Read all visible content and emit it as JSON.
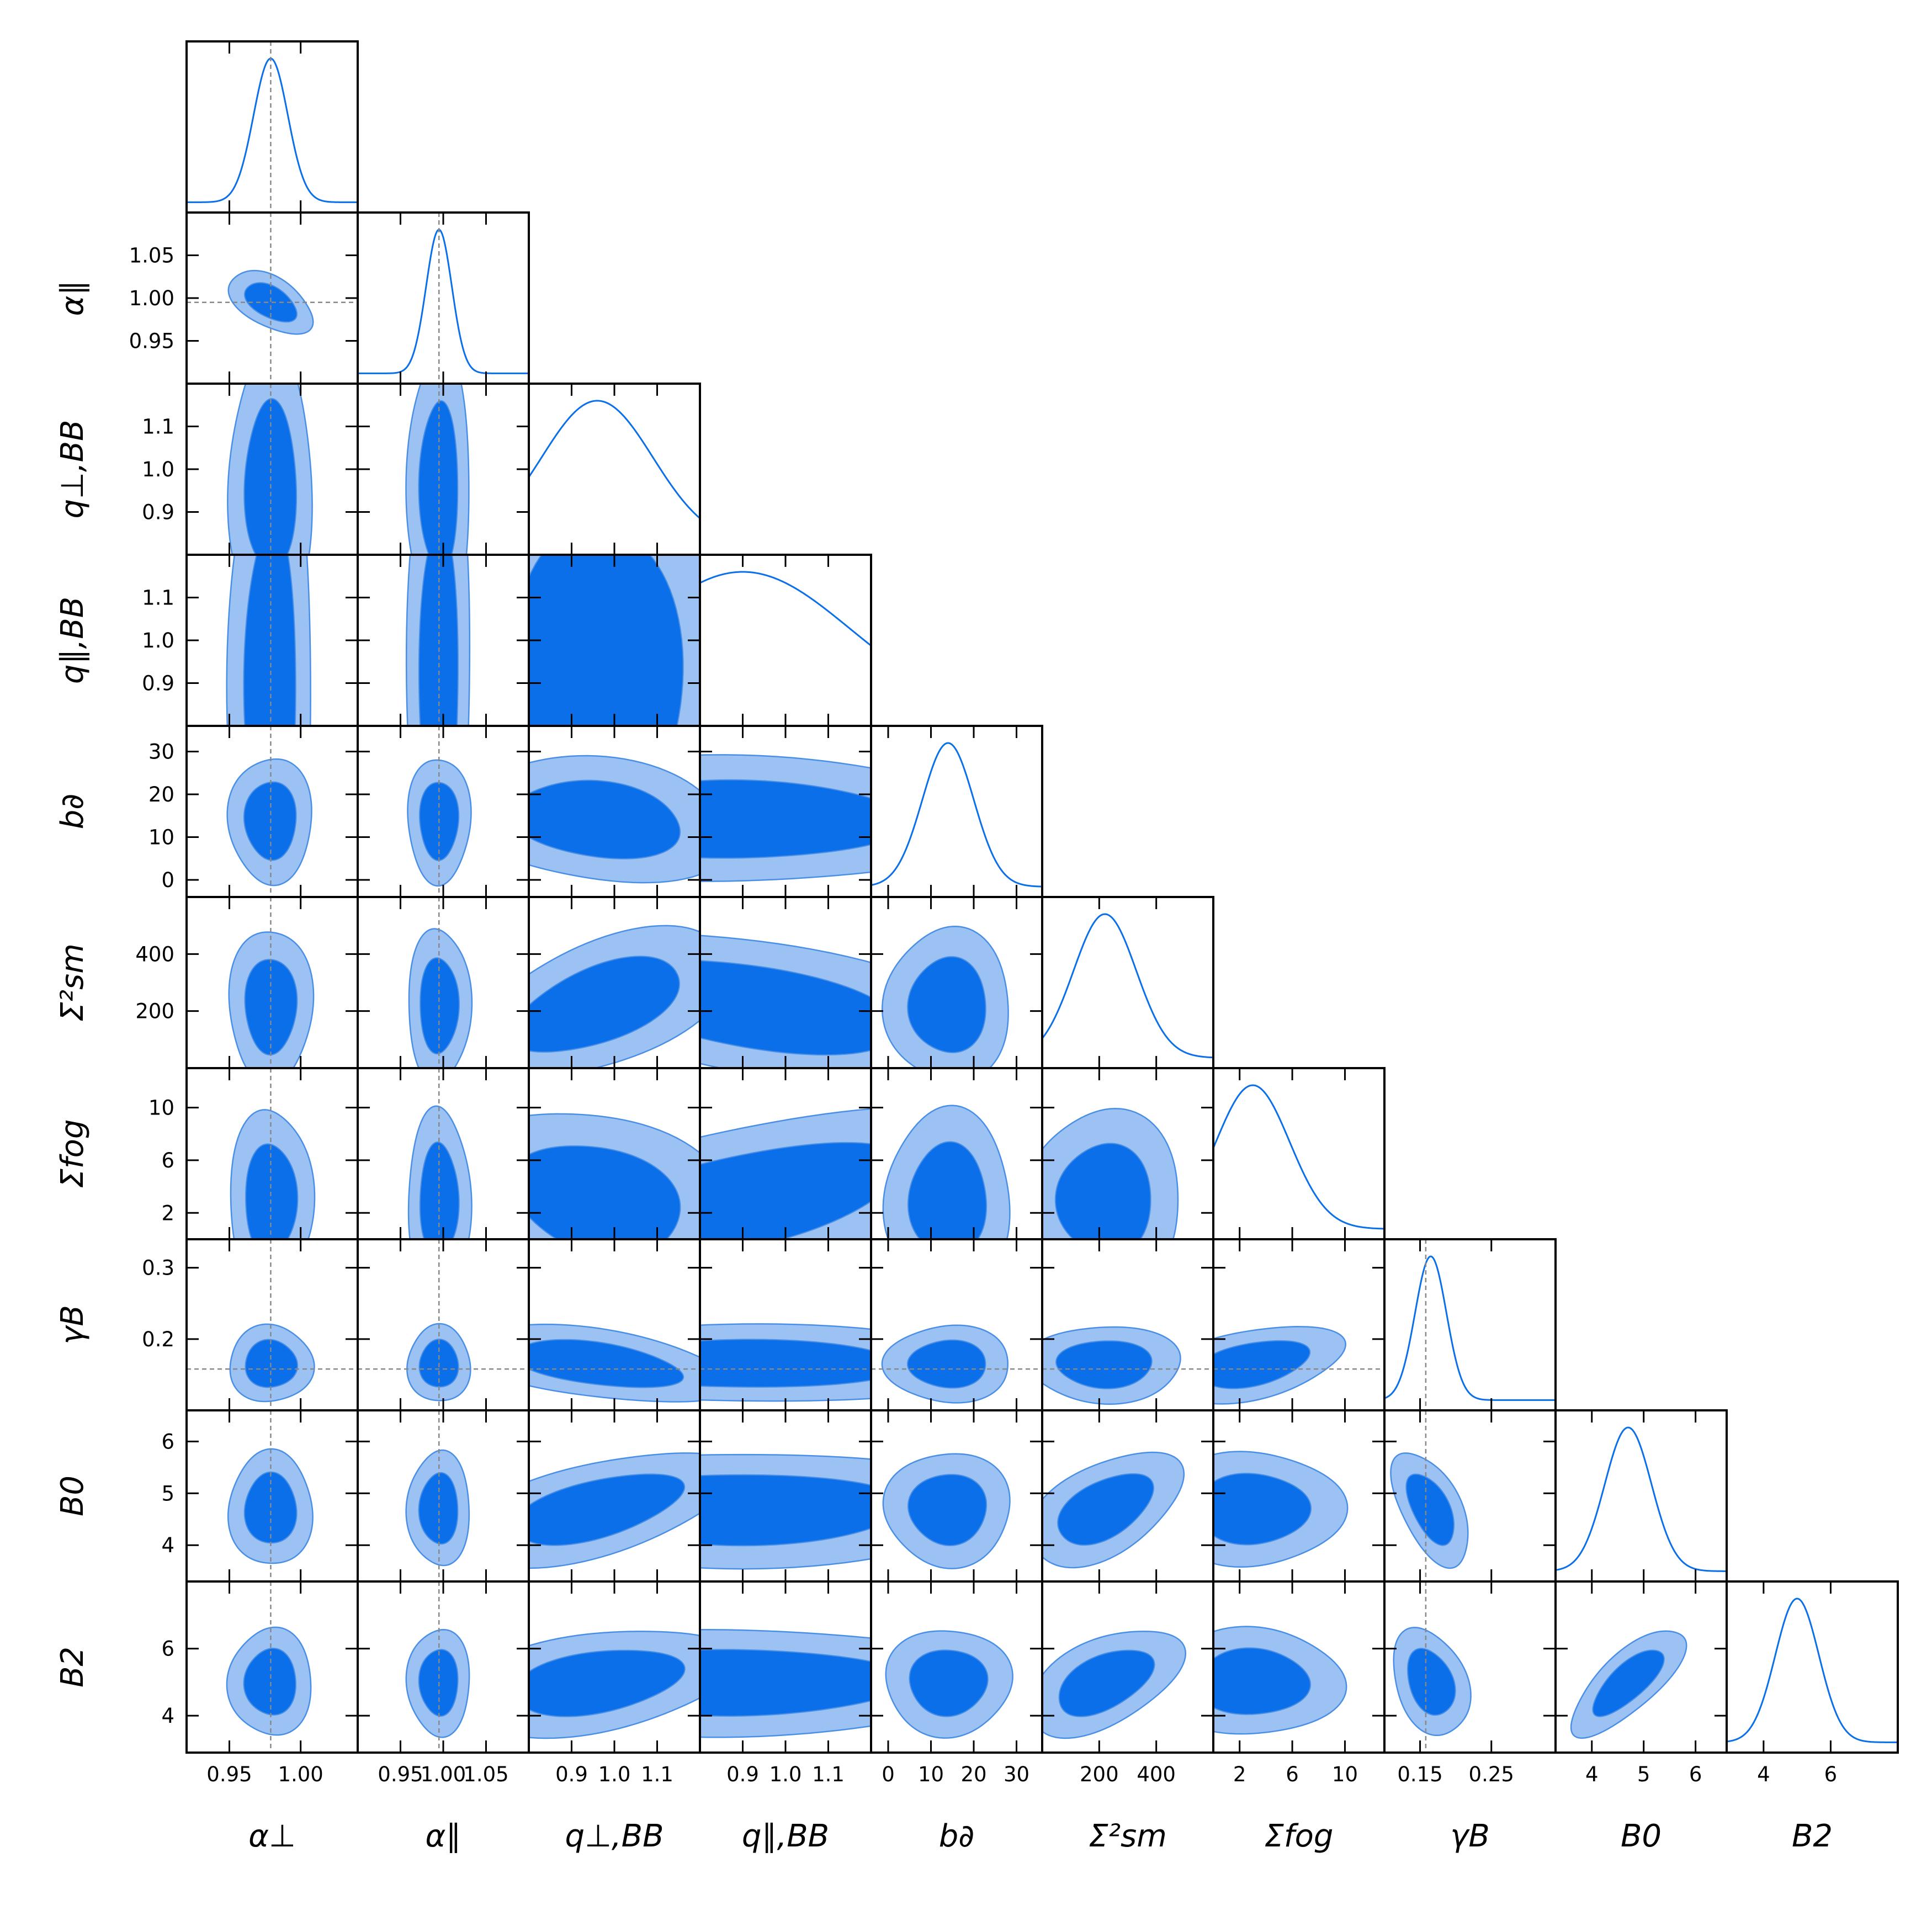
{
  "chart_data": {
    "type": "triangle",
    "colors": {
      "outer_contour": "#9cc2f3",
      "inner_contour": "#0a6fe8",
      "contour_edge": "#4a8fe6",
      "marginal_line": "#0a6fe8",
      "truth_line": "#888888",
      "frame": "#000000"
    },
    "parameters": [
      {
        "name": "α⊥",
        "label": "α⊥",
        "range": [
          0.92,
          1.04
        ],
        "ticks": [
          0.95,
          1.0
        ],
        "tick_labels": [
          "0.95",
          "1.00"
        ],
        "mean": 0.979,
        "sigma": 0.012,
        "truth": 0.979,
        "marginal_peak": 0.979
      },
      {
        "name": "α∥",
        "label": "α∥",
        "range": [
          0.9,
          1.1
        ],
        "ticks": [
          0.95,
          1.0,
          1.05
        ],
        "tick_labels": [
          "0.95",
          "1.00",
          "1.05"
        ],
        "mean": 0.995,
        "sigma": 0.015,
        "truth": 0.995,
        "marginal_peak": 0.995
      },
      {
        "name": "q⊥,BB",
        "label": "q⊥,BB",
        "range": [
          0.8,
          1.2
        ],
        "ticks": [
          0.9,
          1.0,
          1.1
        ],
        "tick_labels": [
          "0.9",
          "1.0",
          "1.1"
        ],
        "mean": 0.96,
        "sigma": 0.13,
        "truth": null,
        "marginal_peak": 0.96
      },
      {
        "name": "q∥,BB",
        "label": "q∥,BB",
        "range": [
          0.8,
          1.2
        ],
        "ticks": [
          0.9,
          1.0,
          1.1
        ],
        "tick_labels": [
          "0.9",
          "1.0",
          "1.1"
        ],
        "mean": 0.9,
        "sigma": 0.25,
        "truth": null,
        "marginal_peak": 0.9
      },
      {
        "name": "b∂",
        "label": "b∂",
        "range": [
          -4,
          36
        ],
        "ticks": [
          0,
          10,
          20,
          30
        ],
        "tick_labels": [
          "0",
          "10",
          "20",
          "30"
        ],
        "mean": 14,
        "sigma": 6,
        "truth": null,
        "marginal_peak": 14
      },
      {
        "name": "Σ²sm",
        "label": "Σ²sm",
        "range": [
          0,
          600
        ],
        "ticks": [
          200,
          400
        ],
        "tick_labels": [
          "200",
          "400"
        ],
        "mean": 220,
        "sigma": 110,
        "truth": null,
        "marginal_peak": 210
      },
      {
        "name": "Σfog",
        "label": "Σfog",
        "range": [
          0,
          13
        ],
        "ticks": [
          2,
          6,
          10
        ],
        "tick_labels": [
          "2",
          "6",
          "10"
        ],
        "mean": 3,
        "sigma": 2.8,
        "truth": null,
        "marginal_peak": 3
      },
      {
        "name": "γB",
        "label": "γB",
        "range": [
          0.1,
          0.34
        ],
        "ticks": [
          0.15,
          0.2,
          0.25,
          0.3
        ],
        "tick_labels": [
          "0.15",
          "0.2",
          "0.25",
          "0.3"
        ],
        "xtick_labels": [
          "0.15",
          "0.25"
        ],
        "xticks": [
          0.15,
          0.25
        ],
        "ytick_labels": [
          "0.2",
          "0.3"
        ],
        "yticks": [
          0.2,
          0.3
        ],
        "mean": 0.165,
        "sigma": 0.022,
        "truth": 0.158,
        "marginal_peak": 0.165
      },
      {
        "name": "B0",
        "label": "B0",
        "range": [
          3.3,
          6.6
        ],
        "ticks": [
          4,
          5,
          6
        ],
        "tick_labels": [
          "4",
          "5",
          "6"
        ],
        "mean": 4.7,
        "sigma": 0.45,
        "truth": null,
        "marginal_peak": 4.65
      },
      {
        "name": "B2",
        "label": "B2",
        "range": [
          2.9,
          8.0
        ],
        "ticks": [
          4,
          6
        ],
        "tick_labels": [
          "4",
          "6"
        ],
        "mean": 5.0,
        "sigma": 0.65,
        "truth": null,
        "marginal_peak": 5.0
      }
    ],
    "row_labels": [
      "",
      "α∥",
      "q⊥,BB",
      "q∥,BB",
      "b∂",
      "Σ²sm",
      "Σfog",
      "γB",
      "B0",
      "B2"
    ],
    "column_labels": [
      "α⊥",
      "α∥",
      "q⊥,BB",
      "q∥,BB",
      "b∂",
      "Σ²sm",
      "Σfog",
      "γB",
      "B0",
      "B2"
    ],
    "correlations": [
      [
        0,
        -0.5,
        0,
        0,
        0,
        0,
        0,
        0,
        0,
        0
      ],
      [
        -0.5,
        0,
        0,
        0,
        0,
        0,
        0,
        0,
        0,
        0
      ],
      [
        0,
        0,
        0,
        0,
        -0.2,
        0.55,
        -0.25,
        -0.45,
        0.55,
        0.35
      ],
      [
        0,
        0,
        0,
        0,
        0,
        -0.5,
        0.55,
        0,
        0,
        0
      ],
      [
        0,
        0,
        -0.2,
        0,
        0,
        0,
        0,
        0,
        0,
        0
      ],
      [
        0,
        0,
        0.55,
        -0.5,
        0,
        0,
        0,
        0,
        0.5,
        0.5
      ],
      [
        0,
        0,
        -0.25,
        0.55,
        0,
        0,
        0,
        0.4,
        0,
        0
      ],
      [
        0,
        0,
        -0.45,
        0,
        0,
        0,
        0.4,
        0,
        -0.55,
        -0.3
      ],
      [
        0,
        0,
        0.55,
        0,
        0,
        0.5,
        0,
        -0.55,
        0,
        0.75
      ],
      [
        0,
        0,
        0.35,
        0,
        0,
        0.5,
        0,
        -0.3,
        0.75,
        0
      ]
    ],
    "contour_levels": [
      "68%",
      "95%"
    ],
    "grid": false,
    "legend": "none"
  }
}
